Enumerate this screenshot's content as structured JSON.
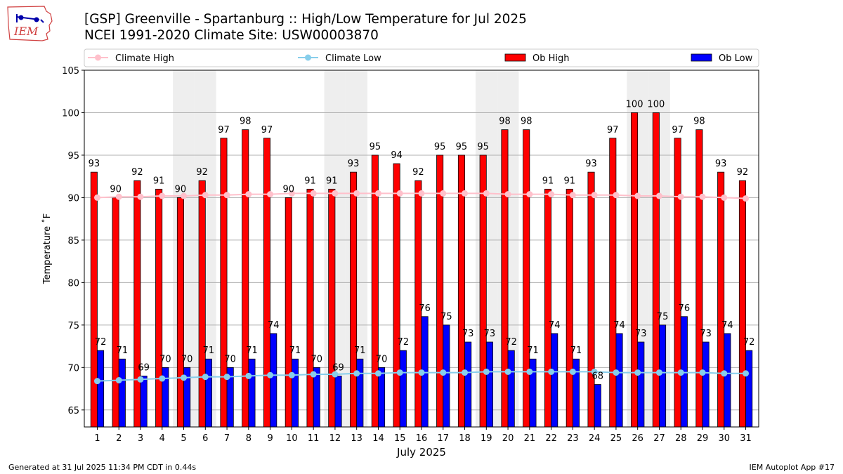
{
  "header": {
    "title_line1": "[GSP] Greenville - Spartanburg :: High/Low Temperature for Jul 2025",
    "title_line2": "NCEI 1991-2020 Climate Site: USW00003870"
  },
  "logo": {
    "text": "IEM",
    "icon": "iowa-state-outline-icon"
  },
  "footer": {
    "generated": "Generated at 31 Jul 2025 11:34 PM CDT in 0.44s",
    "app": "IEM Autoplot App #17"
  },
  "colors": {
    "ob_high": "#ff0000",
    "ob_low": "#0000ff",
    "climate_high": "#ffc0cb",
    "climate_low": "#87ceeb",
    "weekend_shade": "#eeeeee",
    "grid": "#b0b0b0"
  },
  "chart_data": {
    "type": "bar",
    "xlabel": "July 2025",
    "ylabel": "Temperature ˚F",
    "ylim": [
      63,
      105
    ],
    "yticks": [
      65,
      70,
      75,
      80,
      85,
      90,
      95,
      100,
      105
    ],
    "grid": "horizontal",
    "legend_placement": "top",
    "categories": [
      1,
      2,
      3,
      4,
      5,
      6,
      7,
      8,
      9,
      10,
      11,
      12,
      13,
      14,
      15,
      16,
      17,
      18,
      19,
      20,
      21,
      22,
      23,
      24,
      25,
      26,
      27,
      28,
      29,
      30,
      31
    ],
    "shaded_days": [
      5,
      6,
      12,
      13,
      19,
      20,
      26,
      27
    ],
    "series": [
      {
        "name": "Climate High",
        "kind": "line",
        "color": "#ffc0cb",
        "values": [
          90.0,
          90.1,
          90.1,
          90.2,
          90.2,
          90.3,
          90.3,
          90.4,
          90.4,
          90.5,
          90.5,
          90.5,
          90.5,
          90.5,
          90.5,
          90.5,
          90.5,
          90.5,
          90.5,
          90.4,
          90.4,
          90.4,
          90.3,
          90.3,
          90.3,
          90.2,
          90.2,
          90.1,
          90.1,
          90.0,
          89.9
        ]
      },
      {
        "name": "Climate Low",
        "kind": "line",
        "color": "#87ceeb",
        "values": [
          68.4,
          68.5,
          68.6,
          68.7,
          68.8,
          68.9,
          68.9,
          69.0,
          69.1,
          69.1,
          69.2,
          69.2,
          69.3,
          69.3,
          69.4,
          69.4,
          69.4,
          69.4,
          69.5,
          69.5,
          69.5,
          69.5,
          69.5,
          69.5,
          69.4,
          69.4,
          69.4,
          69.4,
          69.4,
          69.3,
          69.3
        ]
      },
      {
        "name": "Ob High",
        "kind": "bar",
        "color": "#ff0000",
        "values": [
          93,
          90,
          92,
          91,
          90,
          92,
          97,
          98,
          97,
          90,
          91,
          91,
          93,
          95,
          94,
          92,
          95,
          95,
          95,
          98,
          98,
          91,
          91,
          93,
          97,
          100,
          100,
          97,
          98,
          93,
          92
        ]
      },
      {
        "name": "Ob Low",
        "kind": "bar",
        "color": "#0000ff",
        "values": [
          72,
          71,
          69,
          70,
          70,
          71,
          70,
          71,
          74,
          71,
          70,
          69,
          71,
          70,
          72,
          76,
          75,
          73,
          73,
          72,
          71,
          74,
          71,
          68,
          74,
          73,
          75,
          76,
          73,
          74,
          72
        ]
      }
    ]
  }
}
